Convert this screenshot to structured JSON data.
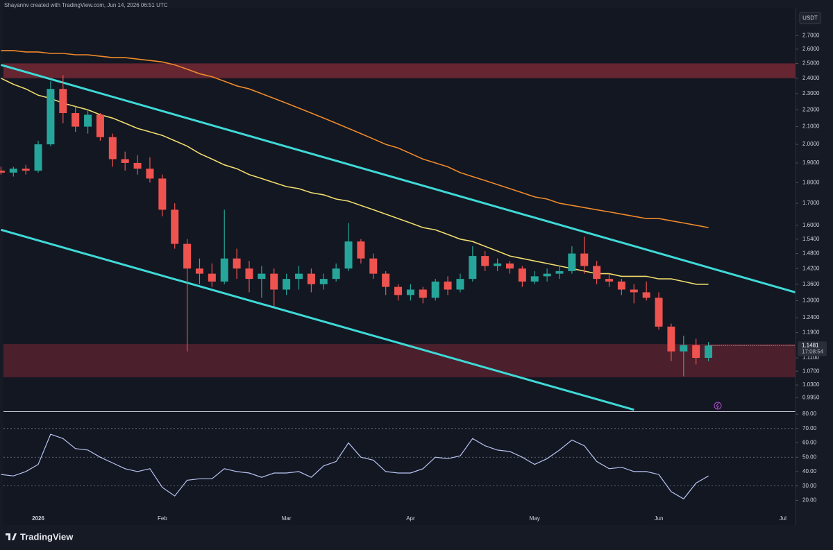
{
  "header": {
    "attribution": "Shayannv created with TradingView.com, Jun 14, 2026 06:51 UTC"
  },
  "footer": {
    "brand": "TradingView"
  },
  "chart_data": [
    {
      "type": "candlestick",
      "currency": "USDT",
      "log_scale": true,
      "up_color": "#26a69a",
      "down_color": "#ef5350",
      "categories": [
        null,
        null,
        null,
        "2026",
        null,
        null,
        null,
        null,
        null,
        null,
        null,
        null,
        null,
        "Feb",
        null,
        null,
        null,
        null,
        null,
        null,
        null,
        null,
        null,
        "Mar",
        null,
        null,
        null,
        null,
        null,
        null,
        null,
        null,
        null,
        "Apr",
        null,
        null,
        null,
        null,
        null,
        null,
        null,
        null,
        null,
        "May",
        null,
        null,
        null,
        null,
        null,
        null,
        null,
        null,
        null,
        "Jun",
        null,
        null,
        null,
        null,
        null,
        null,
        null,
        null,
        null,
        "Jul"
      ],
      "open": [
        1.86,
        1.85,
        1.87,
        1.86,
        2.0,
        2.33,
        2.18,
        2.1,
        2.17,
        2.04,
        1.92,
        1.9,
        1.87,
        1.82,
        1.67,
        1.52,
        1.42,
        1.4,
        1.37,
        1.46,
        1.42,
        1.38,
        1.4,
        1.34,
        1.38,
        1.4,
        1.36,
        1.38,
        1.42,
        1.53,
        1.46,
        1.4,
        1.35,
        1.32,
        1.34,
        1.31,
        1.37,
        1.34,
        1.38,
        1.47,
        1.43,
        1.44,
        1.42,
        1.37,
        1.39,
        1.4,
        1.41,
        1.48,
        1.43,
        1.38,
        1.37,
        1.34,
        1.33,
        1.31,
        1.21,
        1.13,
        1.15,
        1.11,
        null,
        null,
        null,
        null,
        null,
        null
      ],
      "high": [
        1.88,
        1.88,
        1.89,
        2.02,
        2.38,
        2.42,
        2.22,
        2.2,
        2.18,
        2.06,
        1.96,
        1.94,
        1.93,
        1.84,
        1.7,
        1.54,
        1.46,
        1.44,
        1.67,
        1.5,
        1.45,
        1.43,
        1.42,
        1.4,
        1.43,
        1.42,
        1.4,
        1.44,
        1.61,
        1.54,
        1.48,
        1.41,
        1.36,
        1.36,
        1.35,
        1.38,
        1.39,
        1.4,
        1.51,
        1.49,
        1.46,
        1.45,
        1.43,
        1.41,
        1.42,
        1.43,
        1.51,
        1.55,
        1.45,
        1.4,
        1.38,
        1.36,
        1.37,
        1.33,
        1.22,
        1.18,
        1.17,
        1.16,
        null,
        null,
        null,
        null,
        null,
        null
      ],
      "low": [
        1.84,
        1.83,
        1.84,
        1.85,
        1.99,
        2.12,
        2.07,
        2.06,
        2.02,
        1.88,
        1.86,
        1.84,
        1.8,
        1.64,
        1.5,
        1.13,
        1.36,
        1.35,
        1.36,
        1.38,
        1.33,
        1.31,
        1.28,
        1.32,
        1.34,
        1.33,
        1.34,
        1.37,
        1.41,
        1.44,
        1.38,
        1.32,
        1.3,
        1.3,
        1.29,
        1.3,
        1.32,
        1.33,
        1.37,
        1.41,
        1.41,
        1.4,
        1.35,
        1.36,
        1.37,
        1.38,
        1.4,
        1.4,
        1.36,
        1.35,
        1.32,
        1.29,
        1.3,
        1.2,
        1.1,
        1.055,
        1.09,
        1.1,
        null,
        null,
        null,
        null,
        null,
        null
      ],
      "close": [
        1.85,
        1.87,
        1.86,
        2.0,
        2.33,
        2.18,
        2.1,
        2.17,
        2.04,
        1.92,
        1.9,
        1.87,
        1.82,
        1.67,
        1.52,
        1.42,
        1.4,
        1.37,
        1.46,
        1.42,
        1.38,
        1.4,
        1.34,
        1.38,
        1.4,
        1.36,
        1.38,
        1.42,
        1.53,
        1.46,
        1.4,
        1.35,
        1.32,
        1.34,
        1.31,
        1.37,
        1.34,
        1.38,
        1.47,
        1.43,
        1.44,
        1.42,
        1.37,
        1.39,
        1.4,
        1.41,
        1.48,
        1.43,
        1.38,
        1.37,
        1.34,
        1.33,
        1.31,
        1.21,
        1.13,
        1.15,
        1.11,
        1.1481,
        null,
        null,
        null,
        null,
        null,
        null
      ],
      "countdown": "17:08:54",
      "overlays": [
        {
          "color": "#f0dd6e",
          "values": [
            2.4,
            2.36,
            2.33,
            2.29,
            2.27,
            2.24,
            2.22,
            2.2,
            2.17,
            2.15,
            2.12,
            2.09,
            2.07,
            2.05,
            2.02,
            1.99,
            1.95,
            1.92,
            1.89,
            1.87,
            1.84,
            1.82,
            1.8,
            1.78,
            1.77,
            1.75,
            1.74,
            1.72,
            1.71,
            1.69,
            1.67,
            1.65,
            1.63,
            1.61,
            1.59,
            1.58,
            1.56,
            1.54,
            1.53,
            1.51,
            1.49,
            1.47,
            1.46,
            1.45,
            1.44,
            1.43,
            1.42,
            1.41,
            1.4,
            1.4,
            1.39,
            1.39,
            1.39,
            1.38,
            1.38,
            1.37,
            1.36,
            1.36,
            null,
            null,
            null,
            null,
            null,
            null
          ]
        },
        {
          "color": "#ef8a2a",
          "values": [
            2.59,
            2.59,
            2.58,
            2.58,
            2.57,
            2.57,
            2.56,
            2.56,
            2.55,
            2.54,
            2.54,
            2.53,
            2.52,
            2.51,
            2.49,
            2.46,
            2.43,
            2.41,
            2.38,
            2.35,
            2.33,
            2.3,
            2.27,
            2.24,
            2.21,
            2.18,
            2.15,
            2.12,
            2.09,
            2.06,
            2.03,
            2.0,
            1.98,
            1.95,
            1.92,
            1.9,
            1.88,
            1.85,
            1.83,
            1.81,
            1.79,
            1.77,
            1.75,
            1.73,
            1.72,
            1.7,
            1.69,
            1.68,
            1.67,
            1.66,
            1.65,
            1.64,
            1.63,
            1.63,
            1.62,
            1.61,
            1.6,
            1.59,
            null,
            null,
            null,
            null,
            null,
            null
          ]
        }
      ],
      "trendlines": [
        {
          "color": "#3fd9d6",
          "x": [
            0,
            64
          ],
          "values": [
            2.49,
            1.33
          ]
        },
        {
          "color": "#3fd9d6",
          "x": [
            0,
            51
          ],
          "values": [
            1.58,
            0.962
          ]
        }
      ],
      "zones": [
        {
          "color": "#7a2a37",
          "range": [
            2.4,
            2.5
          ]
        },
        {
          "color": "#5a2230",
          "range": [
            1.052,
            1.153
          ]
        }
      ],
      "ylim": [
        0.958,
        2.91
      ],
      "yticks": [
        {
          "value": 2.7,
          "label": "2.7000"
        },
        {
          "value": 2.6,
          "label": "2.6000"
        },
        {
          "value": 2.5,
          "label": "2.5000"
        },
        {
          "value": 2.4,
          "label": "2.4000"
        },
        {
          "value": 2.3,
          "label": "2.3000"
        },
        {
          "value": 2.2,
          "label": "2.2000"
        },
        {
          "value": 2.1,
          "label": "2.1000"
        },
        {
          "value": 2.0,
          "label": "2.0000"
        },
        {
          "value": 1.9,
          "label": "1.9000"
        },
        {
          "value": 1.8,
          "label": "1.8000"
        },
        {
          "value": 1.7,
          "label": "1.7000"
        },
        {
          "value": 1.6,
          "label": "1.6000"
        },
        {
          "value": 1.54,
          "label": "1.5400"
        },
        {
          "value": 1.48,
          "label": "1.4800"
        },
        {
          "value": 1.42,
          "label": "1.4200"
        },
        {
          "value": 1.36,
          "label": "1.3600"
        },
        {
          "value": 1.3,
          "label": "1.3000"
        },
        {
          "value": 1.24,
          "label": "1.2400"
        },
        {
          "value": 1.19,
          "label": "1.1900"
        },
        {
          "value": 1.11,
          "label": "1.1100"
        },
        {
          "value": 1.07,
          "label": "1.0700"
        },
        {
          "value": 1.03,
          "label": "1.0300"
        },
        {
          "value": 0.995,
          "label": "0.9950"
        }
      ]
    },
    {
      "type": "line",
      "color": "#b9c5f2",
      "values": [
        38,
        37,
        40,
        45,
        66,
        63,
        56,
        55,
        50,
        46,
        42,
        40,
        42,
        29,
        23,
        34,
        35,
        35,
        42,
        40,
        39,
        36,
        39,
        39,
        40,
        36,
        44,
        47,
        60,
        50,
        48,
        40,
        39,
        39,
        42,
        50,
        49,
        51,
        63,
        58,
        55,
        54,
        50,
        45,
        49,
        55,
        62,
        58,
        47,
        42,
        43,
        40,
        40,
        38,
        26,
        21,
        32,
        37,
        null,
        null,
        null,
        null,
        null,
        null
      ],
      "bands": [
        70,
        50,
        30
      ],
      "ylim": [
        11,
        81.5
      ],
      "yticks": [
        {
          "value": 80,
          "label": "80.00"
        },
        {
          "value": 70,
          "label": "70.00"
        },
        {
          "value": 60,
          "label": "60.00"
        },
        {
          "value": 50,
          "label": "50.00"
        },
        {
          "value": 40,
          "label": "40.00"
        },
        {
          "value": 30,
          "label": "30.00"
        },
        {
          "value": 20,
          "label": "20.00"
        }
      ]
    }
  ]
}
